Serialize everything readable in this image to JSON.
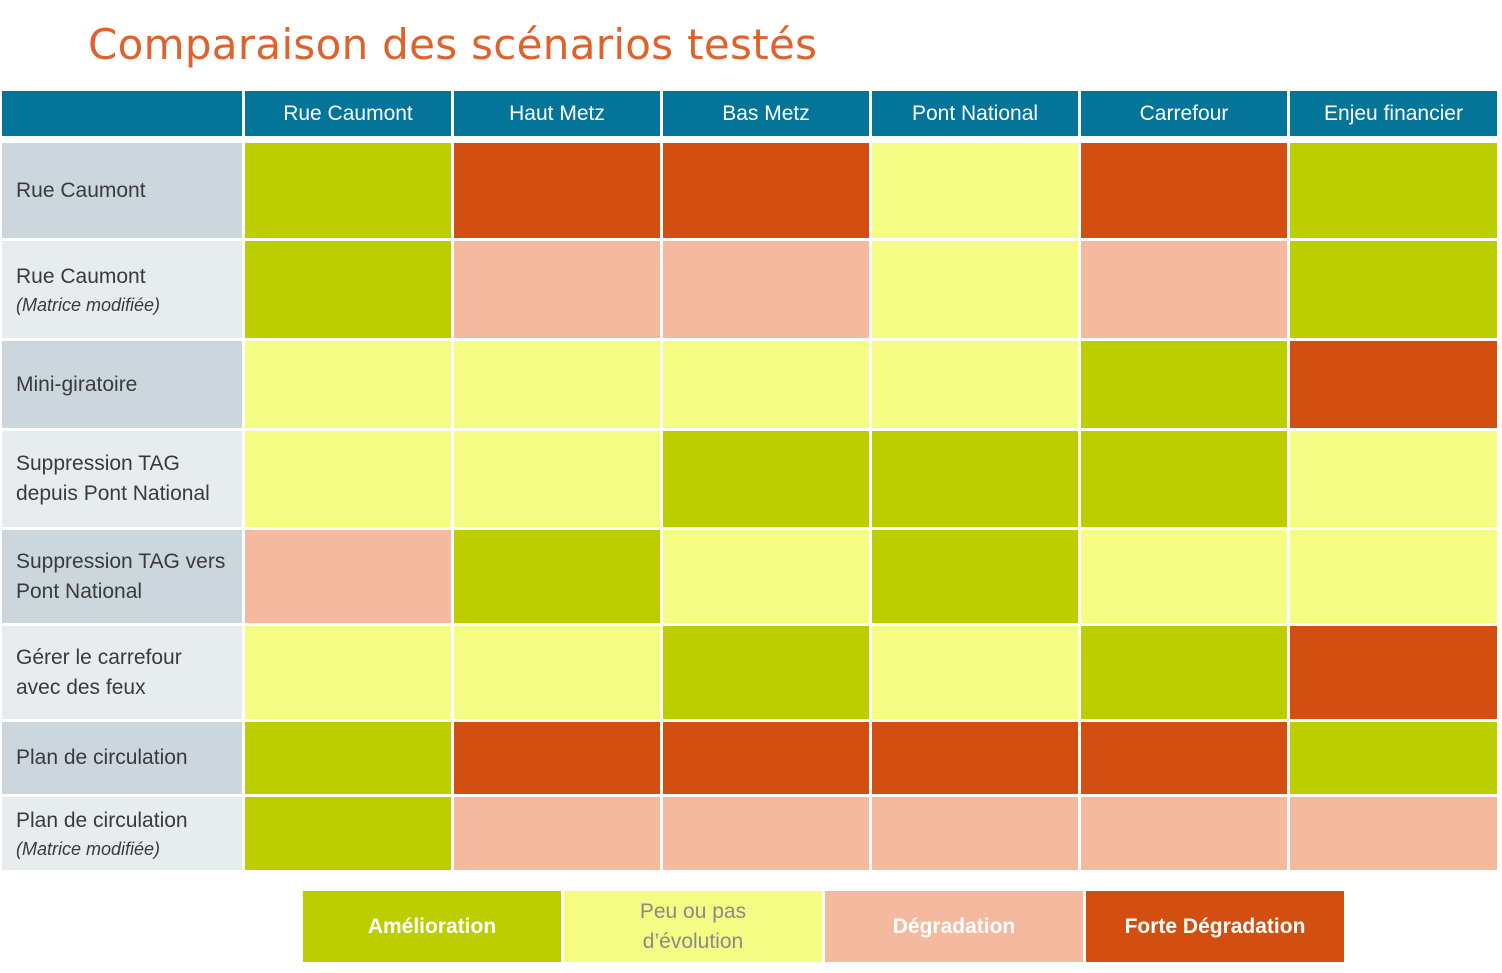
{
  "title": "Comparaison des scénarios testés",
  "columns": [
    "Rue Caumont",
    "Haut Metz",
    "Bas Metz",
    "Pont National",
    "Carrefour",
    "Enjeu financier"
  ],
  "rows": [
    {
      "label": "Rue Caumont",
      "sub": "",
      "cells": [
        "amelioration",
        "forte",
        "forte",
        "peu",
        "forte",
        "amelioration"
      ]
    },
    {
      "label": "Rue Caumont",
      "sub": "(Matrice modifiée)",
      "cells": [
        "amelioration",
        "degradation",
        "degradation",
        "peu",
        "degradation",
        "amelioration"
      ]
    },
    {
      "label": "Mini-giratoire",
      "sub": "",
      "cells": [
        "peu",
        "peu",
        "peu",
        "peu",
        "amelioration",
        "forte"
      ]
    },
    {
      "label": "Suppression TAG depuis Pont National",
      "sub": "",
      "cells": [
        "peu",
        "peu",
        "amelioration",
        "amelioration",
        "amelioration",
        "peu"
      ]
    },
    {
      "label": "Suppression TAG vers Pont National",
      "sub": "",
      "cells": [
        "degradation",
        "amelioration",
        "peu",
        "amelioration",
        "peu",
        "peu"
      ]
    },
    {
      "label": "Gérer le carrefour avec des feux",
      "sub": "",
      "cells": [
        "peu",
        "peu",
        "amelioration",
        "peu",
        "amelioration",
        "forte"
      ]
    },
    {
      "label": "Plan de circulation",
      "sub": "",
      "cells": [
        "amelioration",
        "forte",
        "forte",
        "forte",
        "forte",
        "amelioration"
      ]
    },
    {
      "label": "Plan de circulation",
      "sub": "(Matrice modifiée)",
      "cells": [
        "amelioration",
        "degradation",
        "degradation",
        "degradation",
        "degradation",
        "degradation"
      ]
    }
  ],
  "legend": {
    "amelioration": "Amélioration",
    "peu": "Peu ou pas d’évolution",
    "degradation": "Dégradation",
    "forte": "Forte Dégradation"
  },
  "colors": {
    "header": "#047499",
    "amelioration": "#bccd00",
    "peu": "#f4fc84",
    "degradation": "#f5b9a0",
    "forte": "#d24f11",
    "title": "#e0612b"
  }
}
